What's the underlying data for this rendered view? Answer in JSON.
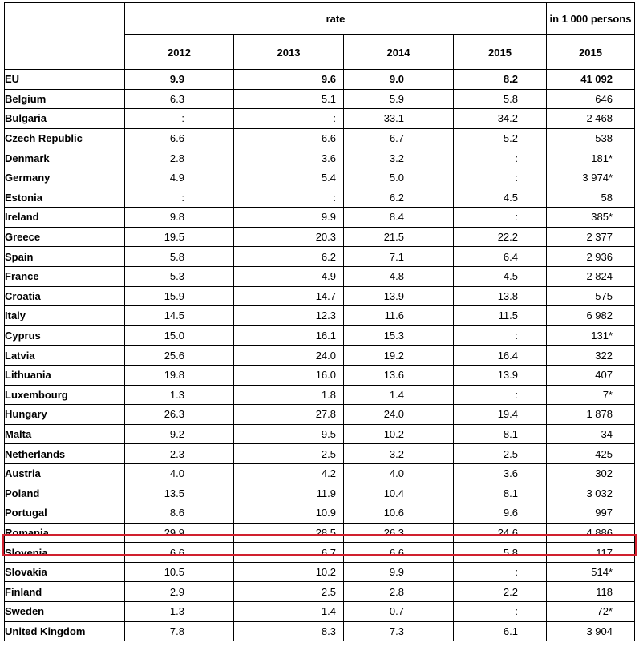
{
  "header": {
    "rate_label": "rate",
    "unit_label": "in 1 000 persons",
    "years": [
      "2012",
      "2013",
      "2014",
      "2015",
      "2015"
    ]
  },
  "highlight": {
    "country": "Romania",
    "color": "#d0202e"
  },
  "rows": [
    {
      "country": "EU",
      "v2012": "9.9",
      "v2013": "9.6",
      "v2014": "9.0",
      "v2015": "8.2",
      "persons2015": "41 092",
      "bold": true
    },
    {
      "country": "Belgium",
      "v2012": "6.3",
      "v2013": "5.1",
      "v2014": "5.9",
      "v2015": "5.8",
      "persons2015": "646"
    },
    {
      "country": "Bulgaria",
      "v2012": ":",
      "v2013": ":",
      "v2014": "33.1",
      "v2015": "34.2",
      "persons2015": "2 468"
    },
    {
      "country": "Czech Republic",
      "v2012": "6.6",
      "v2013": "6.6",
      "v2014": "6.7",
      "v2015": "5.2",
      "persons2015": "538"
    },
    {
      "country": "Denmark",
      "v2012": "2.8",
      "v2013": "3.6",
      "v2014": "3.2",
      "v2015": ":",
      "persons2015": "181*"
    },
    {
      "country": "Germany",
      "v2012": "4.9",
      "v2013": "5.4",
      "v2014": "5.0",
      "v2015": ":",
      "persons2015": "3 974*"
    },
    {
      "country": "Estonia",
      "v2012": ":",
      "v2013": ":",
      "v2014": "6.2",
      "v2015": "4.5",
      "persons2015": "58"
    },
    {
      "country": "Ireland",
      "v2012": "9.8",
      "v2013": "9.9",
      "v2014": "8.4",
      "v2015": ":",
      "persons2015": "385*"
    },
    {
      "country": "Greece",
      "v2012": "19.5",
      "v2013": "20.3",
      "v2014": "21.5",
      "v2015": "22.2",
      "persons2015": "2 377"
    },
    {
      "country": "Spain",
      "v2012": "5.8",
      "v2013": "6.2",
      "v2014": "7.1",
      "v2015": "6.4",
      "persons2015": "2 936"
    },
    {
      "country": "France",
      "v2012": "5.3",
      "v2013": "4.9",
      "v2014": "4.8",
      "v2015": "4.5",
      "persons2015": "2 824"
    },
    {
      "country": "Croatia",
      "v2012": "15.9",
      "v2013": "14.7",
      "v2014": "13.9",
      "v2015": "13.8",
      "persons2015": "575"
    },
    {
      "country": "Italy",
      "v2012": "14.5",
      "v2013": "12.3",
      "v2014": "11.6",
      "v2015": "11.5",
      "persons2015": "6 982"
    },
    {
      "country": "Cyprus",
      "v2012": "15.0",
      "v2013": "16.1",
      "v2014": "15.3",
      "v2015": ":",
      "persons2015": "131*"
    },
    {
      "country": "Latvia",
      "v2012": "25.6",
      "v2013": "24.0",
      "v2014": "19.2",
      "v2015": "16.4",
      "persons2015": "322"
    },
    {
      "country": "Lithuania",
      "v2012": "19.8",
      "v2013": "16.0",
      "v2014": "13.6",
      "v2015": "13.9",
      "persons2015": "407"
    },
    {
      "country": "Luxembourg",
      "v2012": "1.3",
      "v2013": "1.8",
      "v2014": "1.4",
      "v2015": ":",
      "persons2015": "7*"
    },
    {
      "country": "Hungary",
      "v2012": "26.3",
      "v2013": "27.8",
      "v2014": "24.0",
      "v2015": "19.4",
      "persons2015": "1 878"
    },
    {
      "country": "Malta",
      "v2012": "9.2",
      "v2013": "9.5",
      "v2014": "10.2",
      "v2015": "8.1",
      "persons2015": "34"
    },
    {
      "country": "Netherlands",
      "v2012": "2.3",
      "v2013": "2.5",
      "v2014": "3.2",
      "v2015": "2.5",
      "persons2015": "425"
    },
    {
      "country": "Austria",
      "v2012": "4.0",
      "v2013": "4.2",
      "v2014": "4.0",
      "v2015": "3.6",
      "persons2015": "302"
    },
    {
      "country": "Poland",
      "v2012": "13.5",
      "v2013": "11.9",
      "v2014": "10.4",
      "v2015": "8.1",
      "persons2015": "3 032"
    },
    {
      "country": "Portugal",
      "v2012": "8.6",
      "v2013": "10.9",
      "v2014": "10.6",
      "v2015": "9.6",
      "persons2015": "997"
    },
    {
      "country": "Romania",
      "v2012": "29.9",
      "v2013": "28.5",
      "v2014": "26.3",
      "v2015": "24.6",
      "persons2015": "4 886"
    },
    {
      "country": "Slovenia",
      "v2012": "6.6",
      "v2013": "6.7",
      "v2014": "6.6",
      "v2015": "5.8",
      "persons2015": "117"
    },
    {
      "country": "Slovakia",
      "v2012": "10.5",
      "v2013": "10.2",
      "v2014": "9.9",
      "v2015": ":",
      "persons2015": "514*"
    },
    {
      "country": "Finland",
      "v2012": "2.9",
      "v2013": "2.5",
      "v2014": "2.8",
      "v2015": "2.2",
      "persons2015": "118"
    },
    {
      "country": "Sweden",
      "v2012": "1.3",
      "v2013": "1.4",
      "v2014": "0.7",
      "v2015": ":",
      "persons2015": "72*"
    },
    {
      "country": "United Kingdom",
      "v2012": "7.8",
      "v2013": "8.3",
      "v2014": "7.3",
      "v2015": "6.1",
      "persons2015": "3 904"
    }
  ]
}
